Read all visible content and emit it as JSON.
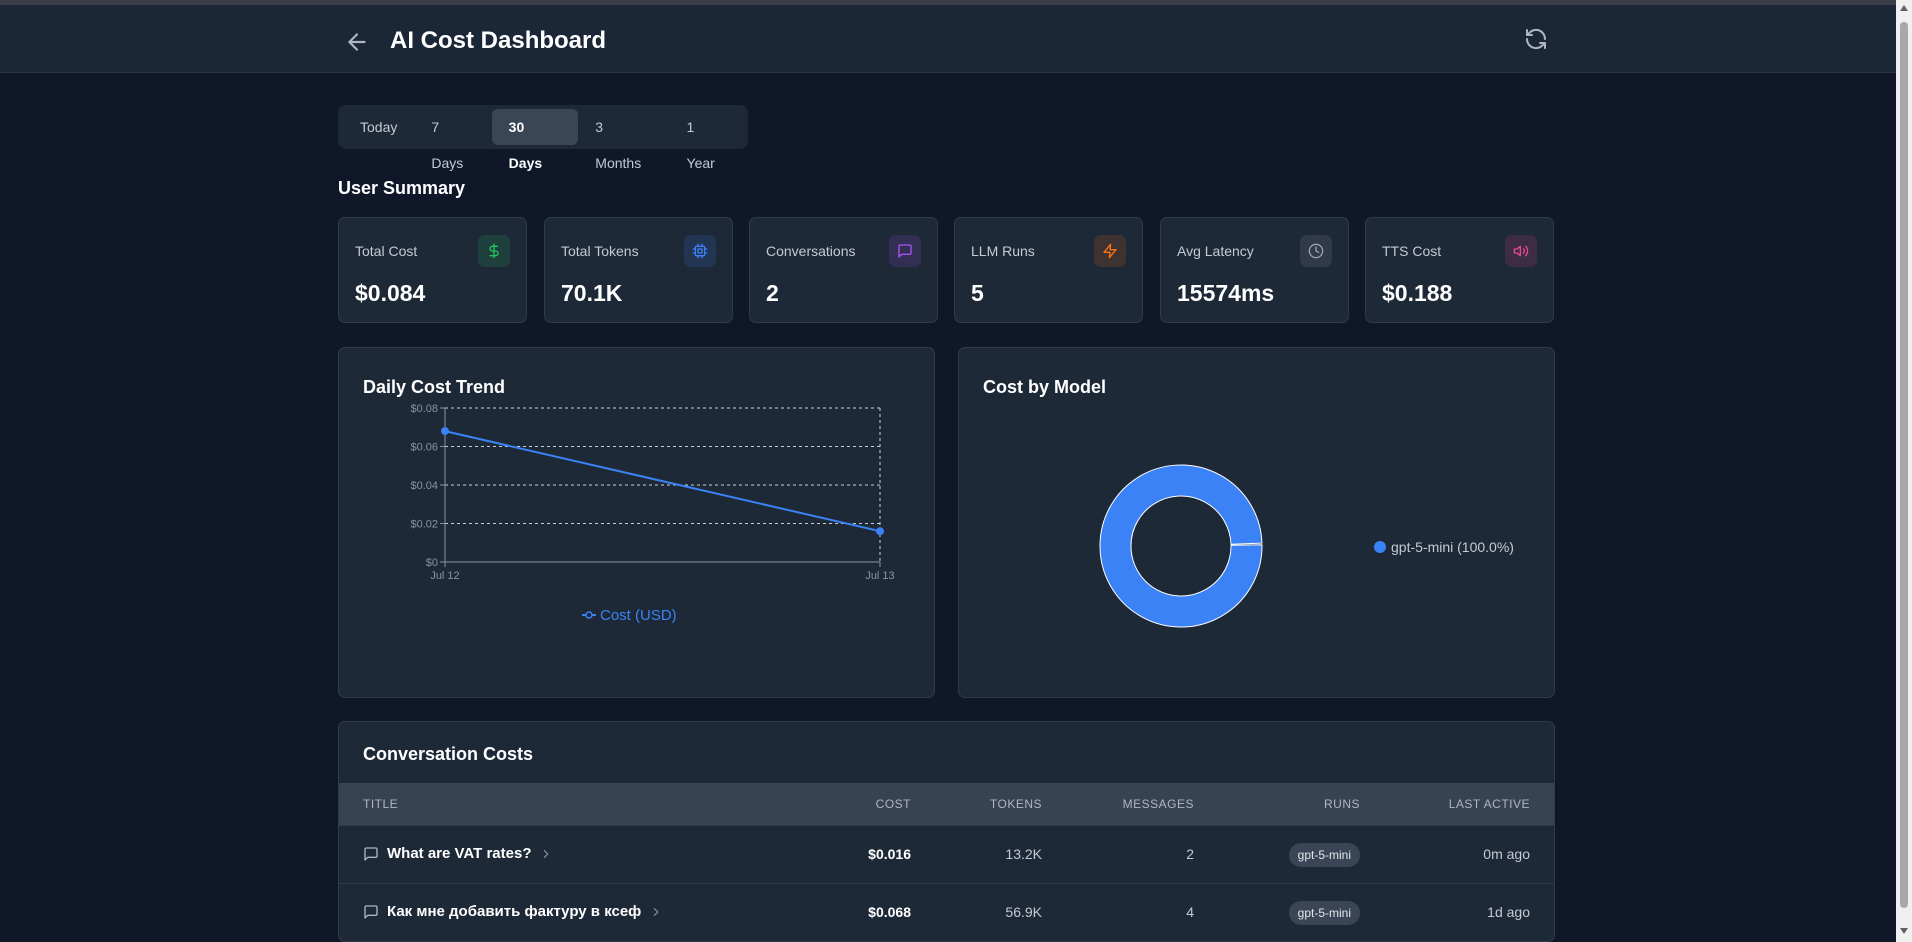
{
  "header": {
    "title": "AI Cost Dashboard"
  },
  "ranges": [
    {
      "label": "Today",
      "active": false
    },
    {
      "label": "7 Days",
      "active": false
    },
    {
      "label": "30 Days",
      "active": true
    },
    {
      "label": "3 Months",
      "active": false
    },
    {
      "label": "1 Year",
      "active": false
    }
  ],
  "summary": {
    "title": "User Summary",
    "cards": [
      {
        "label": "Total Cost",
        "value": "$0.084",
        "icon": "dollar-icon",
        "color": "#22c55e"
      },
      {
        "label": "Total Tokens",
        "value": "70.1K",
        "icon": "cpu-icon",
        "color": "#3b82f6"
      },
      {
        "label": "Conversations",
        "value": "2",
        "icon": "message-icon",
        "color": "#a855f7"
      },
      {
        "label": "LLM Runs",
        "value": "5",
        "icon": "lightning-icon",
        "color": "#f97316"
      },
      {
        "label": "Avg Latency",
        "value": "15574ms",
        "icon": "clock-icon",
        "color": "#9ca3af"
      },
      {
        "label": "TTS Cost",
        "value": "$0.188",
        "icon": "speaker-icon",
        "color": "#ec4899"
      }
    ]
  },
  "daily_trend": {
    "title": "Daily Cost Trend",
    "legend": "Cost (USD)",
    "y_ticks": [
      "$0",
      "$0.02",
      "$0.04",
      "$0.06",
      "$0.08"
    ]
  },
  "cost_by_model": {
    "title": "Cost by Model",
    "legend": "gpt-5-mini (100.0%)"
  },
  "chart_data": [
    {
      "type": "line",
      "title": "Daily Cost Trend",
      "x": [
        "Jul 12",
        "Jul 13"
      ],
      "series": [
        {
          "name": "Cost (USD)",
          "values": [
            0.068,
            0.016
          ],
          "color": "#3b82f6"
        }
      ],
      "ylim": [
        0,
        0.08
      ],
      "grid": true,
      "legend_position": "bottom"
    },
    {
      "type": "pie",
      "title": "Cost by Model",
      "categories": [
        "gpt-5-mini (100.0%)"
      ],
      "values": [
        100.0
      ],
      "color": "#3b82f6",
      "legend_position": "right"
    }
  ],
  "conversations": {
    "title": "Conversation Costs",
    "columns": {
      "title": "TITLE",
      "cost": "COST",
      "tokens": "TOKENS",
      "messages": "MESSAGES",
      "runs": "RUNS",
      "last_active": "LAST ACTIVE"
    },
    "rows": [
      {
        "title": "What are VAT rates?",
        "cost": "$0.016",
        "tokens": "13.2K",
        "messages": "2",
        "runs": "gpt-5-mini",
        "last_active": "0m ago"
      },
      {
        "title": "Как мне добавить фактуру в ксеф",
        "cost": "$0.068",
        "tokens": "56.9K",
        "messages": "4",
        "runs": "gpt-5-mini",
        "last_active": "1d ago"
      }
    ]
  }
}
